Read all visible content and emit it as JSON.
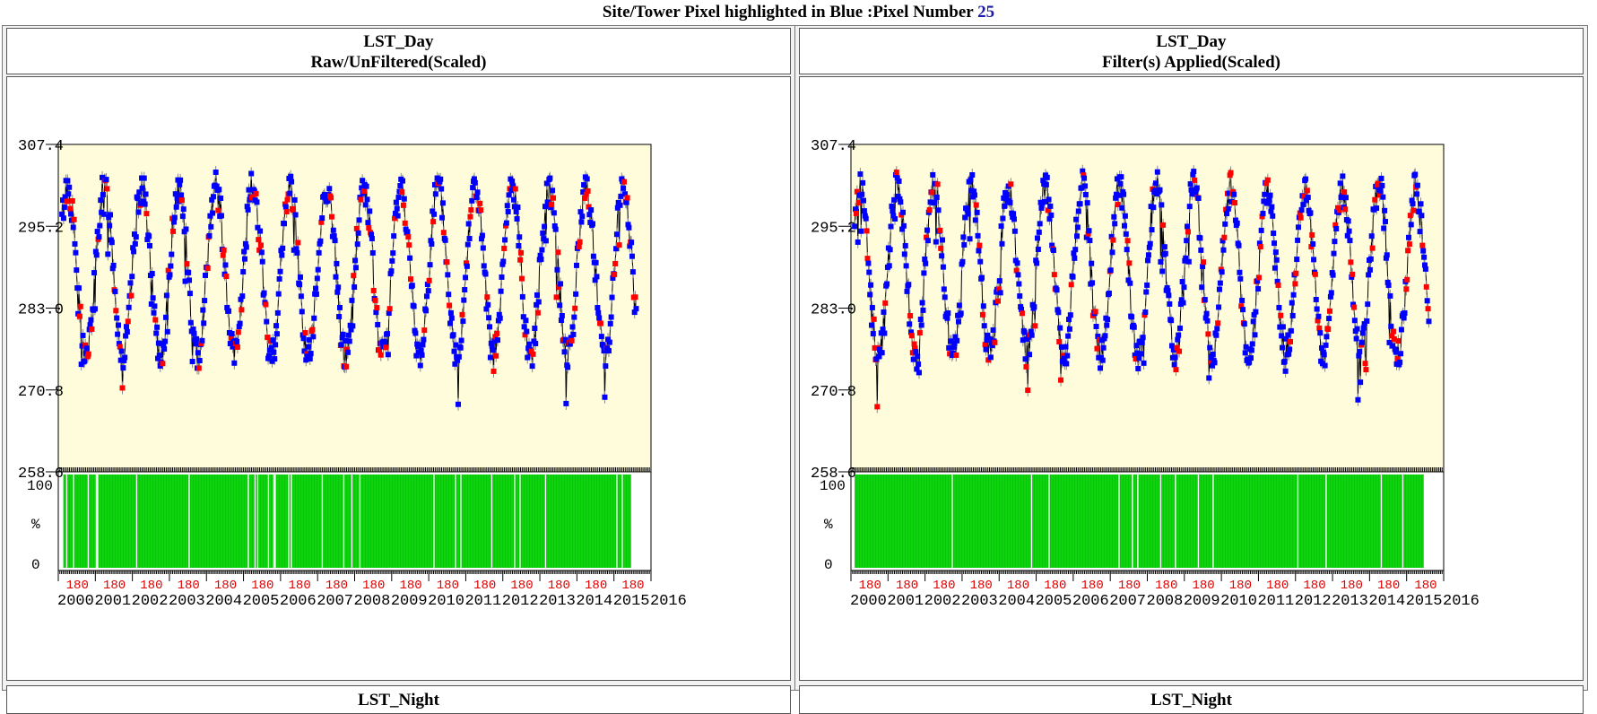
{
  "page": {
    "title_prefix": "Site/Tower Pixel highlighted in Blue :Pixel Number",
    "pixel_number": "25"
  },
  "panels": [
    {
      "title": "LST_Day",
      "subtitle": "Raw/UnFiltered(Scaled)",
      "next_title": "LST_Night"
    },
    {
      "title": "LST_Day",
      "subtitle": "Filter(s) Applied(Scaled)",
      "next_title": "LST_Night"
    }
  ],
  "chart_data": [
    {
      "type": "scatter",
      "title": "LST_Day",
      "subtitle": "Raw/UnFiltered(Scaled)",
      "ylim": [
        258.6,
        307.4
      ],
      "yticks": [
        "307.4",
        "295.2",
        "283.0",
        "270.8",
        "258.6"
      ],
      "xlim": [
        2000,
        2016
      ],
      "xticks": [
        "2000",
        "2001",
        "2002",
        "2003",
        "2004",
        "2005",
        "2006",
        "2007",
        "2008",
        "2009",
        "2010",
        "2011",
        "2012",
        "2013",
        "2014",
        "2015",
        "2016"
      ],
      "doy_tick_label": "180",
      "series": [
        {
          "name": "",
          "color": "#0000ff",
          "marker": "square"
        },
        {
          "name": "",
          "color": "#ff0000",
          "marker": "square"
        }
      ],
      "qa_panel": {
        "ylabels": [
          "100",
          "%",
          "0"
        ],
        "bar_color": "#00cc00",
        "value_percent": 100
      },
      "background": "#fffcdc",
      "cycle": {
        "min_approx": 276,
        "max_approx": 301,
        "period_years": 1
      }
    },
    {
      "type": "scatter",
      "title": "LST_Day",
      "subtitle": "Filter(s) Applied(Scaled)",
      "ylim": [
        258.6,
        307.4
      ],
      "yticks": [
        "307.4",
        "295.2",
        "283.0",
        "270.8",
        "258.6"
      ],
      "xlim": [
        2000,
        2016
      ],
      "xticks": [
        "2000",
        "2001",
        "2002",
        "2003",
        "2004",
        "2005",
        "2006",
        "2007",
        "2008",
        "2009",
        "2010",
        "2011",
        "2012",
        "2013",
        "2014",
        "2015",
        "2016"
      ],
      "doy_tick_label": "180",
      "series": [
        {
          "name": "",
          "color": "#0000ff",
          "marker": "square"
        },
        {
          "name": "",
          "color": "#ff0000",
          "marker": "square"
        }
      ],
      "qa_panel": {
        "ylabels": [
          "100",
          "%",
          "0"
        ],
        "bar_color": "#00cc00",
        "value_percent": 100
      },
      "background": "#fffcdc",
      "cycle": {
        "min_approx": 276,
        "max_approx": 301,
        "period_years": 1
      }
    }
  ]
}
